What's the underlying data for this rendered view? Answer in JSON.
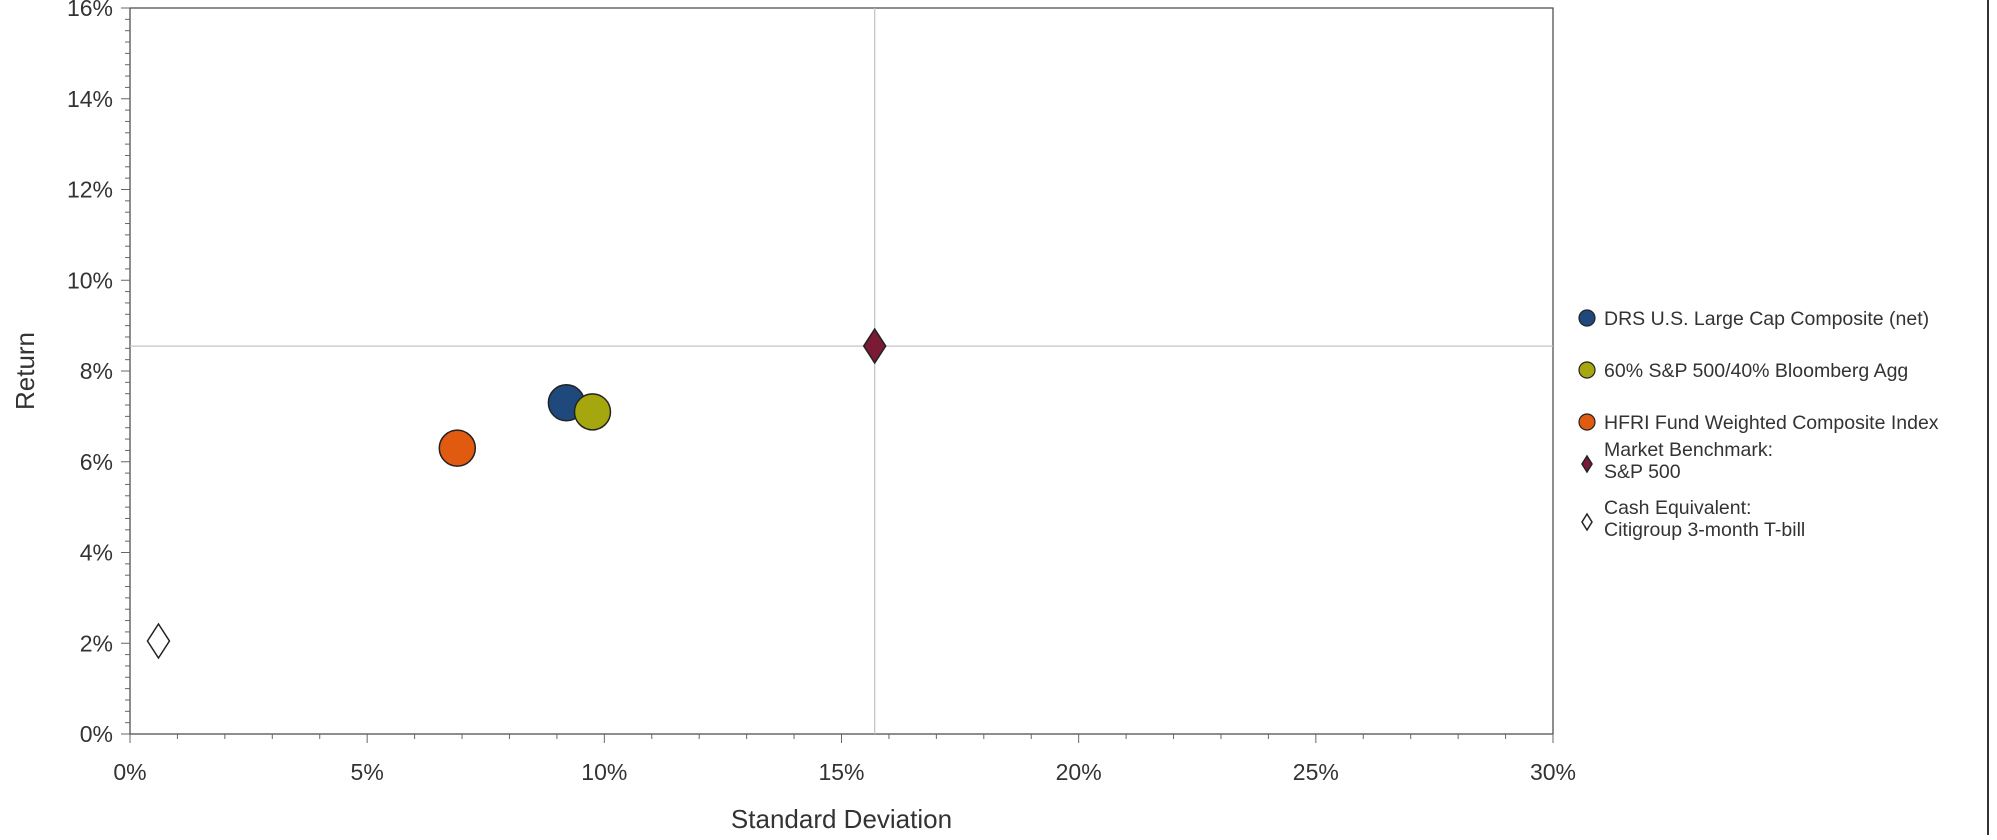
{
  "chart_data": {
    "type": "scatter",
    "xlabel": "Standard Deviation",
    "ylabel": "Return",
    "xlim": [
      0,
      30
    ],
    "ylim": [
      0,
      16
    ],
    "x_ticks": [
      "0%",
      "5%",
      "10%",
      "15%",
      "20%",
      "25%",
      "30%"
    ],
    "y_ticks": [
      "0%",
      "2%",
      "4%",
      "6%",
      "8%",
      "10%",
      "12%",
      "14%",
      "16%"
    ],
    "grid": false,
    "legend_position": "right",
    "reference_lines": {
      "x": 15.7,
      "y": 8.55
    },
    "series": [
      {
        "name": "DRS U.S. Large Cap Composite (net)",
        "marker": "circle",
        "color": "#1f497d",
        "points": [
          {
            "x": 9.2,
            "y": 7.3
          }
        ]
      },
      {
        "name": "60% S&P 500/40% Bloomberg Agg",
        "marker": "circle",
        "color": "#a6a60f",
        "points": [
          {
            "x": 9.75,
            "y": 7.1
          }
        ]
      },
      {
        "name": "HFRI Fund Weighted Composite Index",
        "marker": "circle",
        "color": "#e05a10",
        "points": [
          {
            "x": 6.9,
            "y": 6.3
          }
        ]
      },
      {
        "name": [
          "Market Benchmark:",
          "S&P 500"
        ],
        "marker": "diamond",
        "color": "#7b1a35",
        "points": [
          {
            "x": 15.7,
            "y": 8.55
          }
        ]
      },
      {
        "name": [
          "Cash Equivalent:",
          "Citigroup 3-month T-bill"
        ],
        "marker": "diamond-open",
        "color": "#ffffff",
        "points": [
          {
            "x": 0.6,
            "y": 2.05
          }
        ]
      }
    ]
  }
}
